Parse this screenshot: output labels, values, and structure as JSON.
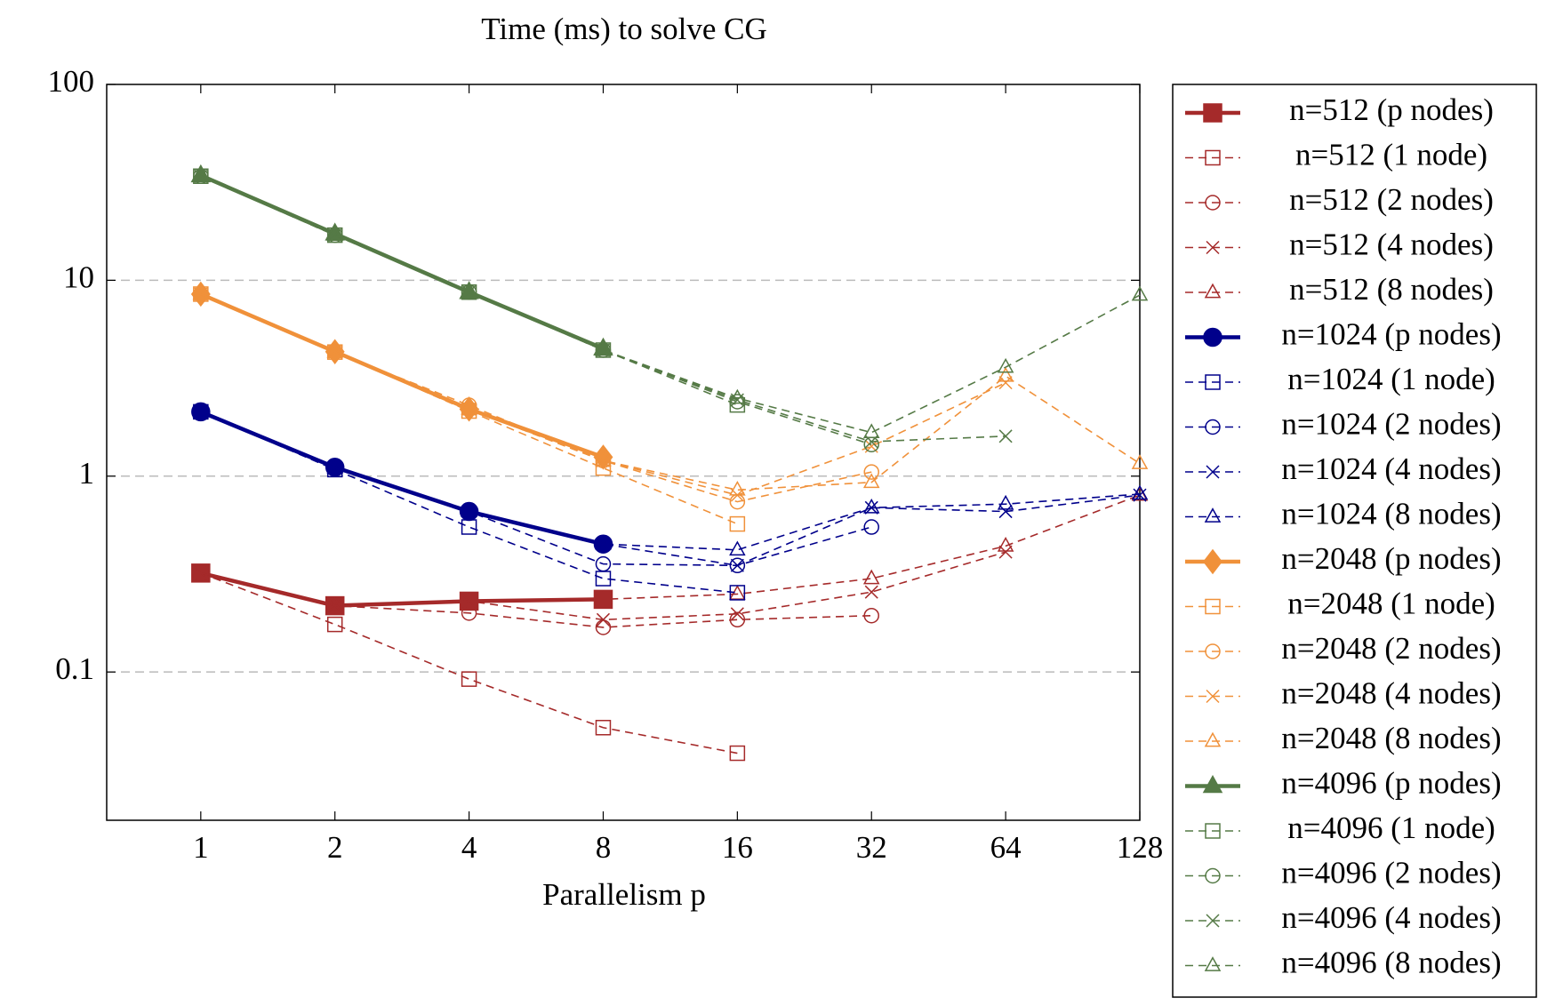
{
  "chart_data": {
    "type": "line",
    "title": "Time (ms) to solve CG",
    "xlabel": "Parallelism p",
    "xlog": true,
    "ylog": true,
    "xlim": [
      0.615,
      128
    ],
    "ylim": [
      0.0175,
      100
    ],
    "xticks": [
      1,
      2,
      4,
      8,
      16,
      32,
      64,
      128
    ],
    "yticks": [
      0.1,
      1,
      10,
      100
    ],
    "grid": true,
    "legend": "outside right",
    "series": [
      {
        "name": "n=512 (p nodes)",
        "color": "#a52a2a",
        "line": "solid",
        "marker": "square",
        "x": [
          1,
          2,
          4,
          8
        ],
        "values": [
          0.32,
          0.218,
          0.23,
          0.235
        ]
      },
      {
        "name": "n=512 (1 node)",
        "color": "#a52a2a",
        "line": "dashed",
        "marker": "square",
        "x": [
          1,
          2,
          4,
          8,
          16
        ],
        "values": [
          0.32,
          0.175,
          0.092,
          0.052,
          0.0385
        ]
      },
      {
        "name": "n=512 (2 nodes)",
        "color": "#a52a2a",
        "line": "dashed",
        "marker": "circle",
        "x": [
          1,
          2,
          4,
          8,
          16,
          32
        ],
        "values": [
          0.32,
          0.218,
          0.2,
          0.169,
          0.185,
          0.194
        ]
      },
      {
        "name": "n=512 (4 nodes)",
        "color": "#a52a2a",
        "line": "dashed",
        "marker": "cross",
        "x": [
          1,
          2,
          4,
          8,
          16,
          32,
          64
        ],
        "values": [
          0.32,
          0.218,
          0.23,
          0.185,
          0.198,
          0.256,
          0.41
        ]
      },
      {
        "name": "n=512 (8 nodes)",
        "color": "#a52a2a",
        "line": "dashed",
        "marker": "triangle",
        "x": [
          1,
          2,
          4,
          8,
          16,
          32,
          64,
          128
        ],
        "values": [
          0.32,
          0.218,
          0.23,
          0.235,
          0.25,
          0.3,
          0.44,
          0.8
        ]
      },
      {
        "name": "n=1024 (p nodes)",
        "color": "#00008b",
        "line": "solid",
        "marker": "circle",
        "x": [
          1,
          2,
          4,
          8
        ],
        "values": [
          2.13,
          1.11,
          0.66,
          0.45
        ]
      },
      {
        "name": "n=1024 (1 node)",
        "color": "#00008b",
        "line": "dashed",
        "marker": "square",
        "x": [
          1,
          2,
          4,
          8,
          16
        ],
        "values": [
          2.13,
          1.08,
          0.55,
          0.3,
          0.254
        ]
      },
      {
        "name": "n=1024 (2 nodes)",
        "color": "#00008b",
        "line": "dashed",
        "marker": "circle",
        "x": [
          1,
          2,
          4,
          8,
          16,
          32
        ],
        "values": [
          2.13,
          1.1,
          0.66,
          0.356,
          0.35,
          0.55
        ]
      },
      {
        "name": "n=1024 (4 nodes)",
        "color": "#00008b",
        "line": "dashed",
        "marker": "cross",
        "x": [
          1,
          2,
          4,
          8,
          16,
          32,
          64,
          128
        ],
        "values": [
          2.13,
          1.1,
          0.66,
          0.45,
          0.35,
          0.69,
          0.66,
          0.8
        ]
      },
      {
        "name": "n=1024 (8 nodes)",
        "color": "#00008b",
        "line": "dashed",
        "marker": "triangle",
        "x": [
          1,
          2,
          4,
          8,
          16,
          32,
          64,
          128
        ],
        "values": [
          2.13,
          1.1,
          0.66,
          0.45,
          0.42,
          0.69,
          0.72,
          0.81
        ]
      },
      {
        "name": "n=2048 (p nodes)",
        "color": "#f0913a",
        "line": "solid",
        "marker": "diamond",
        "x": [
          1,
          2,
          4,
          8
        ],
        "values": [
          8.5,
          4.32,
          2.2,
          1.25
        ]
      },
      {
        "name": "n=2048 (1 node)",
        "color": "#f0913a",
        "line": "dashed",
        "marker": "square",
        "x": [
          1,
          2,
          4,
          8,
          16
        ],
        "values": [
          8.5,
          4.3,
          2.15,
          1.1,
          0.57
        ]
      },
      {
        "name": "n=2048 (2 nodes)",
        "color": "#f0913a",
        "line": "dashed",
        "marker": "circle",
        "x": [
          1,
          2,
          4,
          8,
          16,
          32
        ],
        "values": [
          8.5,
          4.3,
          2.3,
          1.2,
          0.74,
          1.05
        ]
      },
      {
        "name": "n=2048 (4 nodes)",
        "color": "#f0913a",
        "line": "dashed",
        "marker": "cross",
        "x": [
          1,
          2,
          4,
          8,
          16,
          32,
          64
        ],
        "values": [
          8.5,
          4.3,
          2.2,
          1.2,
          0.8,
          1.42,
          3.0
        ]
      },
      {
        "name": "n=2048 (8 nodes)",
        "color": "#f0913a",
        "line": "dashed",
        "marker": "triangle",
        "x": [
          1,
          2,
          4,
          8,
          16,
          32,
          64,
          128
        ],
        "values": [
          8.5,
          4.3,
          2.2,
          1.2,
          0.85,
          0.93,
          3.24,
          1.16
        ]
      },
      {
        "name": "n=4096 (p nodes)",
        "color": "#557a46",
        "line": "solid",
        "marker": "triangle",
        "x": [
          1,
          2,
          4,
          8
        ],
        "values": [
          34.3,
          17.3,
          8.7,
          4.48
        ]
      },
      {
        "name": "n=4096 (1 node)",
        "color": "#557a46",
        "line": "dashed",
        "marker": "square",
        "x": [
          1,
          2,
          4,
          8,
          16
        ],
        "values": [
          34,
          17,
          8.7,
          4.4,
          2.31
        ]
      },
      {
        "name": "n=4096 (2 nodes)",
        "color": "#557a46",
        "line": "dashed",
        "marker": "circle",
        "x": [
          1,
          2,
          4,
          8,
          16,
          32
        ],
        "values": [
          34,
          17,
          8.7,
          4.4,
          2.4,
          1.45
        ]
      },
      {
        "name": "n=4096 (4 nodes)",
        "color": "#557a46",
        "line": "dashed",
        "marker": "cross",
        "x": [
          1,
          2,
          4,
          8,
          16,
          32,
          64
        ],
        "values": [
          34,
          17,
          8.7,
          4.4,
          2.45,
          1.5,
          1.6
        ]
      },
      {
        "name": "n=4096 (8 nodes)",
        "color": "#557a46",
        "line": "dashed",
        "marker": "triangle",
        "x": [
          1,
          2,
          4,
          8,
          16,
          32,
          64,
          128
        ],
        "values": [
          34,
          17,
          8.7,
          4.4,
          2.5,
          1.67,
          3.6,
          8.4
        ]
      }
    ]
  }
}
